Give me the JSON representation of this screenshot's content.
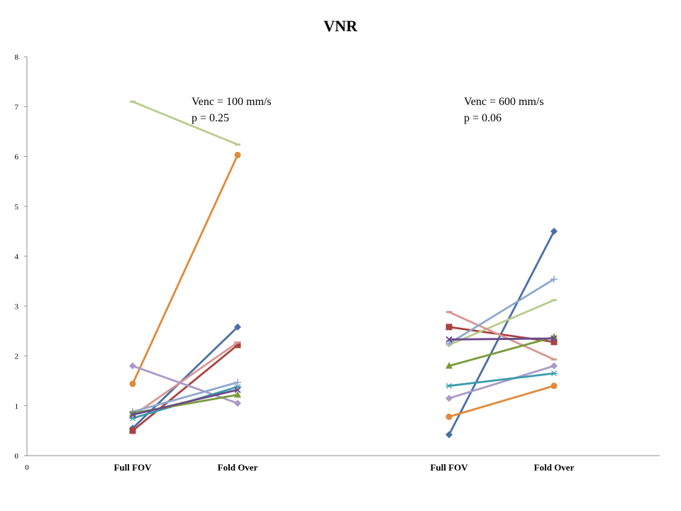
{
  "chart_data": {
    "type": "line",
    "title": "VNR",
    "xlabel": "",
    "ylabel": "",
    "ylim": [
      0,
      8
    ],
    "yticks": [
      0,
      1,
      2,
      3,
      4,
      5,
      6,
      7,
      8
    ],
    "origin_label": "0",
    "grid": false,
    "legend": "none",
    "groups": [
      {
        "categories": [
          "Full FOV",
          "Fold Over"
        ],
        "annotation": [
          "Venc = 100 mm/s",
          "p = 0.25"
        ],
        "series": [
          {
            "values": [
              0.55,
              2.58
            ],
            "color": "#4a6fa5",
            "marker": "diamond"
          },
          {
            "values": [
              0.5,
              2.22
            ],
            "color": "#a94442",
            "marker": "square"
          },
          {
            "values": [
              7.1,
              6.24
            ],
            "color": "#b8cc8e",
            "marker": "dash"
          },
          {
            "values": [
              1.44,
              6.03
            ],
            "color": "#e08a3c",
            "marker": "circle"
          },
          {
            "values": [
              0.8,
              2.27
            ],
            "color": "#d99693",
            "marker": "dash"
          },
          {
            "values": [
              1.8,
              1.05
            ],
            "color": "#a99bc6",
            "marker": "diamond"
          },
          {
            "values": [
              0.88,
              1.47
            ],
            "color": "#8ea9d0",
            "marker": "plus"
          },
          {
            "values": [
              0.75,
              1.38
            ],
            "color": "#3a9cae",
            "marker": "star"
          },
          {
            "values": [
              0.85,
              1.22
            ],
            "color": "#7a9a3a",
            "marker": "triangle"
          },
          {
            "values": [
              0.82,
              1.32
            ],
            "color": "#6a4a8a",
            "marker": "x"
          }
        ]
      },
      {
        "categories": [
          "Full FOV",
          "Fold Over"
        ],
        "annotation": [
          "Venc = 600 mm/s",
          "p = 0.06"
        ],
        "series": [
          {
            "values": [
              0.42,
              4.5
            ],
            "color": "#4a6fa5",
            "marker": "diamond"
          },
          {
            "values": [
              2.58,
              2.28
            ],
            "color": "#a94442",
            "marker": "square"
          },
          {
            "values": [
              2.22,
              3.12
            ],
            "color": "#b8cc8e",
            "marker": "dash"
          },
          {
            "values": [
              0.78,
              1.4
            ],
            "color": "#e08a3c",
            "marker": "circle"
          },
          {
            "values": [
              2.88,
              1.93
            ],
            "color": "#d99693",
            "marker": "dash"
          },
          {
            "values": [
              1.15,
              1.8
            ],
            "color": "#a99bc6",
            "marker": "diamond"
          },
          {
            "values": [
              2.25,
              3.54
            ],
            "color": "#8ea9d0",
            "marker": "plus"
          },
          {
            "values": [
              1.4,
              1.65
            ],
            "color": "#3a9cae",
            "marker": "star"
          },
          {
            "values": [
              1.8,
              2.38
            ],
            "color": "#7a9a3a",
            "marker": "triangle"
          },
          {
            "values": [
              2.33,
              2.35
            ],
            "color": "#6a4a8a",
            "marker": "x"
          }
        ]
      }
    ]
  }
}
